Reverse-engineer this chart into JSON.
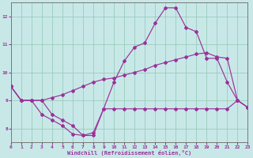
{
  "background_color": "#c8e8e8",
  "grid_color": "#99ccbb",
  "line_color": "#993399",
  "x_hours": [
    0,
    1,
    2,
    3,
    4,
    5,
    6,
    7,
    8,
    9,
    10,
    11,
    12,
    13,
    14,
    15,
    16,
    17,
    18,
    19,
    20,
    21,
    22,
    23
  ],
  "curve_wc": [
    9.5,
    9.0,
    9.0,
    8.5,
    8.3,
    8.1,
    7.8,
    7.75,
    7.75,
    8.7,
    8.7,
    8.7,
    8.7,
    8.7,
    8.7,
    8.7,
    8.7,
    8.7,
    8.7,
    8.7,
    8.7,
    8.7,
    9.0,
    8.75
  ],
  "curve_temp": [
    9.5,
    9.0,
    9.0,
    9.0,
    9.1,
    9.2,
    9.35,
    9.5,
    9.65,
    9.75,
    9.8,
    9.9,
    10.0,
    10.1,
    10.25,
    10.35,
    10.45,
    10.55,
    10.65,
    10.7,
    10.55,
    10.5,
    9.0,
    8.75
  ],
  "curve_peak": [
    9.5,
    9.0,
    9.0,
    9.0,
    8.5,
    8.3,
    8.1,
    7.75,
    7.85,
    8.7,
    9.65,
    10.4,
    10.9,
    11.05,
    11.75,
    12.3,
    12.3,
    11.6,
    11.45,
    10.5,
    10.5,
    9.65,
    9.0,
    8.75
  ],
  "xlabel": "Windchill (Refroidissement éolien,°C)",
  "ylim": [
    7.5,
    12.5
  ],
  "xlim": [
    0,
    23
  ],
  "yticks": [
    8,
    9,
    10,
    11,
    12
  ],
  "xticks": [
    0,
    1,
    2,
    3,
    4,
    5,
    6,
    7,
    8,
    9,
    10,
    11,
    12,
    13,
    14,
    15,
    16,
    17,
    18,
    19,
    20,
    21,
    22,
    23
  ]
}
